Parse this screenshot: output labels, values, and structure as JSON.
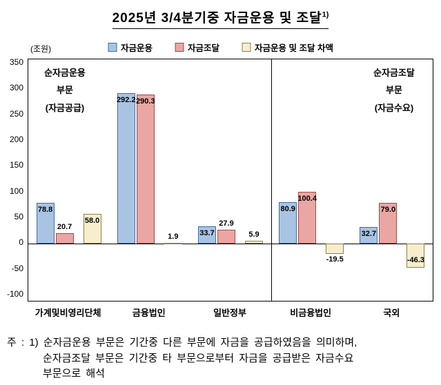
{
  "title": {
    "text": "2025년 3/4분기중 자금운용 및 조달",
    "superscript": "1)"
  },
  "unit_label": "(조원)",
  "annotations": {
    "left": {
      "line1": "순자금운용",
      "line2": "부문",
      "line3": "(자금공급)"
    },
    "right": {
      "line1": "순자금조달",
      "line2": "부문",
      "line3": "(자금수요)"
    }
  },
  "chart_data": {
    "type": "bar",
    "title": "2025년 3/4분기중 자금운용 및 조달",
    "ylabel": "(조원)",
    "ylim": [
      -100,
      350
    ],
    "ytick_step": 50,
    "grid": false,
    "legend_position": "top",
    "categories": [
      "가계및비영리단체",
      "금융법인",
      "일반정부",
      "비금융법인",
      "국외"
    ],
    "series": [
      {
        "name": "자금운용",
        "fill": "#A9C4E3",
        "border": "#3F6CA5",
        "values": [
          78.8,
          292.2,
          33.7,
          80.9,
          32.7
        ]
      },
      {
        "name": "자금조달",
        "fill": "#E9A6A3",
        "border": "#A14A46",
        "values": [
          20.7,
          290.3,
          27.9,
          100.4,
          79.0
        ]
      },
      {
        "name": "자금운용 및 조달 차액",
        "fill": "#F6EECC",
        "border": "#8F7F4C",
        "values": [
          58.0,
          1.9,
          5.9,
          -19.5,
          -46.3
        ]
      }
    ],
    "divider_after_category": "일반정부"
  },
  "footnote": {
    "line1": "주 : 1) 순자금운용 부문은 기간중 다른 부문에 자금을 공급하였음을 의미하며,",
    "line2": "순자금조달 부문은 기간중 타 부문으로부터 자금을 공급받은 자금수요",
    "line3": "부문으로 해석"
  }
}
